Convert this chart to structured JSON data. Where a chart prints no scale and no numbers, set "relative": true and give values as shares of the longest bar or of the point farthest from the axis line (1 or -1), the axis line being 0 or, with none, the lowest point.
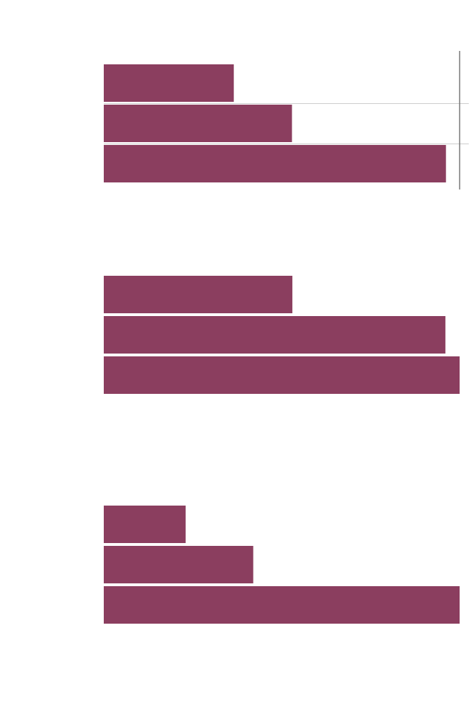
{
  "chart_data": [
    {
      "type": "bar",
      "orientation": "horizontal",
      "relative": true,
      "categories": [
        null,
        null,
        null
      ],
      "values": [
        0.38,
        0.55,
        1
      ],
      "color": "#8b3e5f",
      "grid": "y",
      "ref_lines": [
        {
          "axis": "x",
          "value": 1.04,
          "color": "#777777"
        }
      ]
    },
    {
      "type": "bar",
      "orientation": "horizontal",
      "relative": true,
      "categories": [
        null,
        null,
        null
      ],
      "values": [
        0.53,
        0.96,
        1
      ],
      "color": "#8b3e5f"
    },
    {
      "type": "bar",
      "orientation": "horizontal",
      "relative": true,
      "categories": [
        null,
        null,
        null
      ],
      "values": [
        0.23,
        0.42,
        1
      ],
      "color": "#8b3e5f"
    }
  ]
}
